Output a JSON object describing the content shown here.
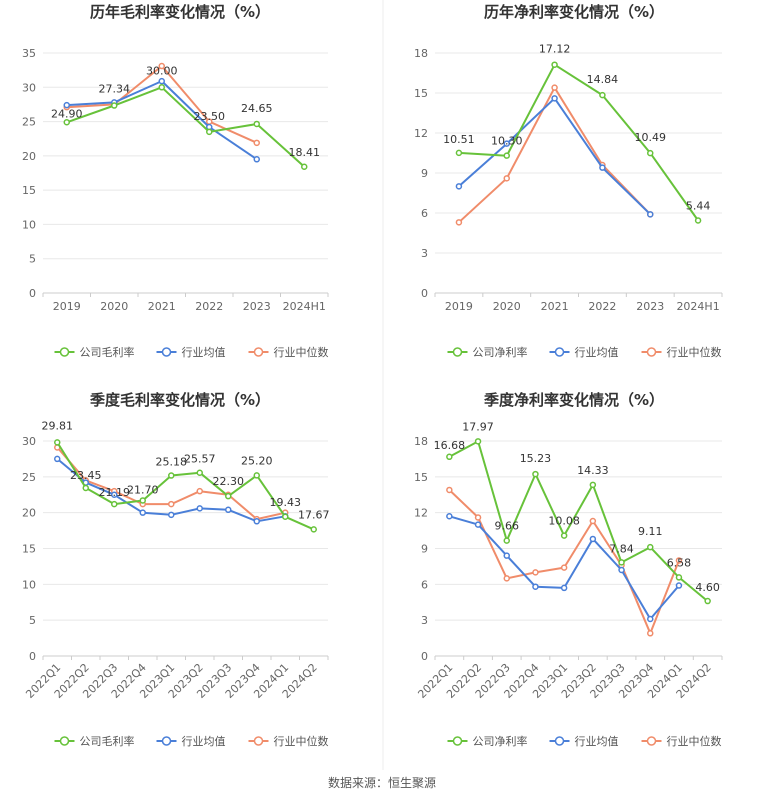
{
  "source_note": "数据来源：恒生聚源",
  "chart_data": [
    {
      "type": "line",
      "title": "历年毛利率变化情况（%）",
      "categories": [
        "2019",
        "2020",
        "2021",
        "2022",
        "2023",
        "2024H1"
      ],
      "ylim": [
        0,
        35
      ],
      "yticks": [
        0,
        5,
        10,
        15,
        20,
        25,
        30,
        35
      ],
      "grid": true,
      "legend_position": "bottom",
      "series": [
        {
          "name": "公司毛利率",
          "color": "#67c23a",
          "values": [
            24.9,
            27.34,
            30.0,
            23.5,
            24.65,
            18.41
          ],
          "labels": [
            "24.90",
            "27.34",
            "30.00",
            "23.50",
            "24.65",
            "18.41"
          ]
        },
        {
          "name": "行业均值",
          "color": "#4a7fd8",
          "values": [
            27.4,
            27.8,
            30.9,
            24.2,
            19.5,
            null
          ]
        },
        {
          "name": "行业中位数",
          "color": "#f08c6a",
          "values": [
            27.1,
            27.5,
            33.1,
            25.0,
            21.9,
            null
          ]
        }
      ]
    },
    {
      "type": "line",
      "title": "历年净利率变化情况（%）",
      "categories": [
        "2019",
        "2020",
        "2021",
        "2022",
        "2023",
        "2024H1"
      ],
      "ylim": [
        0,
        18
      ],
      "yticks": [
        0,
        3,
        6,
        9,
        12,
        15,
        18
      ],
      "grid": true,
      "legend_position": "bottom",
      "series": [
        {
          "name": "公司净利率",
          "color": "#67c23a",
          "values": [
            10.51,
            10.3,
            17.12,
            14.84,
            10.49,
            5.44
          ],
          "labels": [
            "10.51",
            "10.30",
            "17.12",
            "14.84",
            "10.49",
            "5.44"
          ]
        },
        {
          "name": "行业均值",
          "color": "#4a7fd8",
          "values": [
            8.0,
            11.2,
            14.6,
            9.4,
            5.9,
            null
          ]
        },
        {
          "name": "行业中位数",
          "color": "#f08c6a",
          "values": [
            5.3,
            8.6,
            15.4,
            9.6,
            5.9,
            null
          ]
        }
      ]
    },
    {
      "type": "line",
      "title": "季度毛利率变化情况（%）",
      "categories": [
        "2022Q1",
        "2022Q2",
        "2022Q3",
        "2022Q4",
        "2023Q1",
        "2023Q2",
        "2023Q3",
        "2023Q4",
        "2024Q1",
        "2024Q2"
      ],
      "ylim": [
        0,
        30
      ],
      "yticks": [
        0,
        5,
        10,
        15,
        20,
        25,
        30
      ],
      "grid": true,
      "legend_position": "bottom",
      "series": [
        {
          "name": "公司毛利率",
          "color": "#67c23a",
          "values": [
            29.81,
            23.45,
            21.19,
            21.7,
            25.18,
            25.57,
            22.3,
            25.2,
            19.43,
            17.67
          ],
          "labels": [
            "29.81",
            "23.45",
            "21.19",
            "21.70",
            "25.18",
            "25.57",
            "22.30",
            "25.20",
            "19.43",
            "17.67"
          ]
        },
        {
          "name": "行业均值",
          "color": "#4a7fd8",
          "values": [
            27.5,
            24.2,
            22.5,
            20.0,
            19.7,
            20.6,
            20.4,
            18.8,
            19.5,
            null
          ]
        },
        {
          "name": "行业中位数",
          "color": "#f08c6a",
          "values": [
            29.1,
            24.5,
            23.0,
            21.2,
            21.2,
            23.0,
            22.5,
            19.1,
            20.0,
            null
          ]
        }
      ]
    },
    {
      "type": "line",
      "title": "季度净利率变化情况（%）",
      "categories": [
        "2022Q1",
        "2022Q2",
        "2022Q3",
        "2022Q4",
        "2023Q1",
        "2023Q2",
        "2023Q3",
        "2023Q4",
        "2024Q1",
        "2024Q2"
      ],
      "ylim": [
        0,
        18
      ],
      "yticks": [
        0,
        3,
        6,
        9,
        12,
        15,
        18
      ],
      "grid": true,
      "legend_position": "bottom",
      "series": [
        {
          "name": "公司净利率",
          "color": "#67c23a",
          "values": [
            16.68,
            17.97,
            9.66,
            15.23,
            10.08,
            14.33,
            7.84,
            9.11,
            6.58,
            4.6
          ],
          "labels": [
            "16.68",
            "17.97",
            "9.66",
            "15.23",
            "10.08",
            "14.33",
            "7.84",
            "9.11",
            "6.58",
            "4.60"
          ]
        },
        {
          "name": "行业均值",
          "color": "#4a7fd8",
          "values": [
            11.7,
            11.0,
            8.4,
            5.8,
            5.7,
            9.8,
            7.2,
            3.1,
            5.9,
            null
          ]
        },
        {
          "name": "行业中位数",
          "color": "#f08c6a",
          "values": [
            13.9,
            11.6,
            6.5,
            7.0,
            7.4,
            11.3,
            7.6,
            1.9,
            8.0,
            null
          ]
        }
      ]
    }
  ]
}
